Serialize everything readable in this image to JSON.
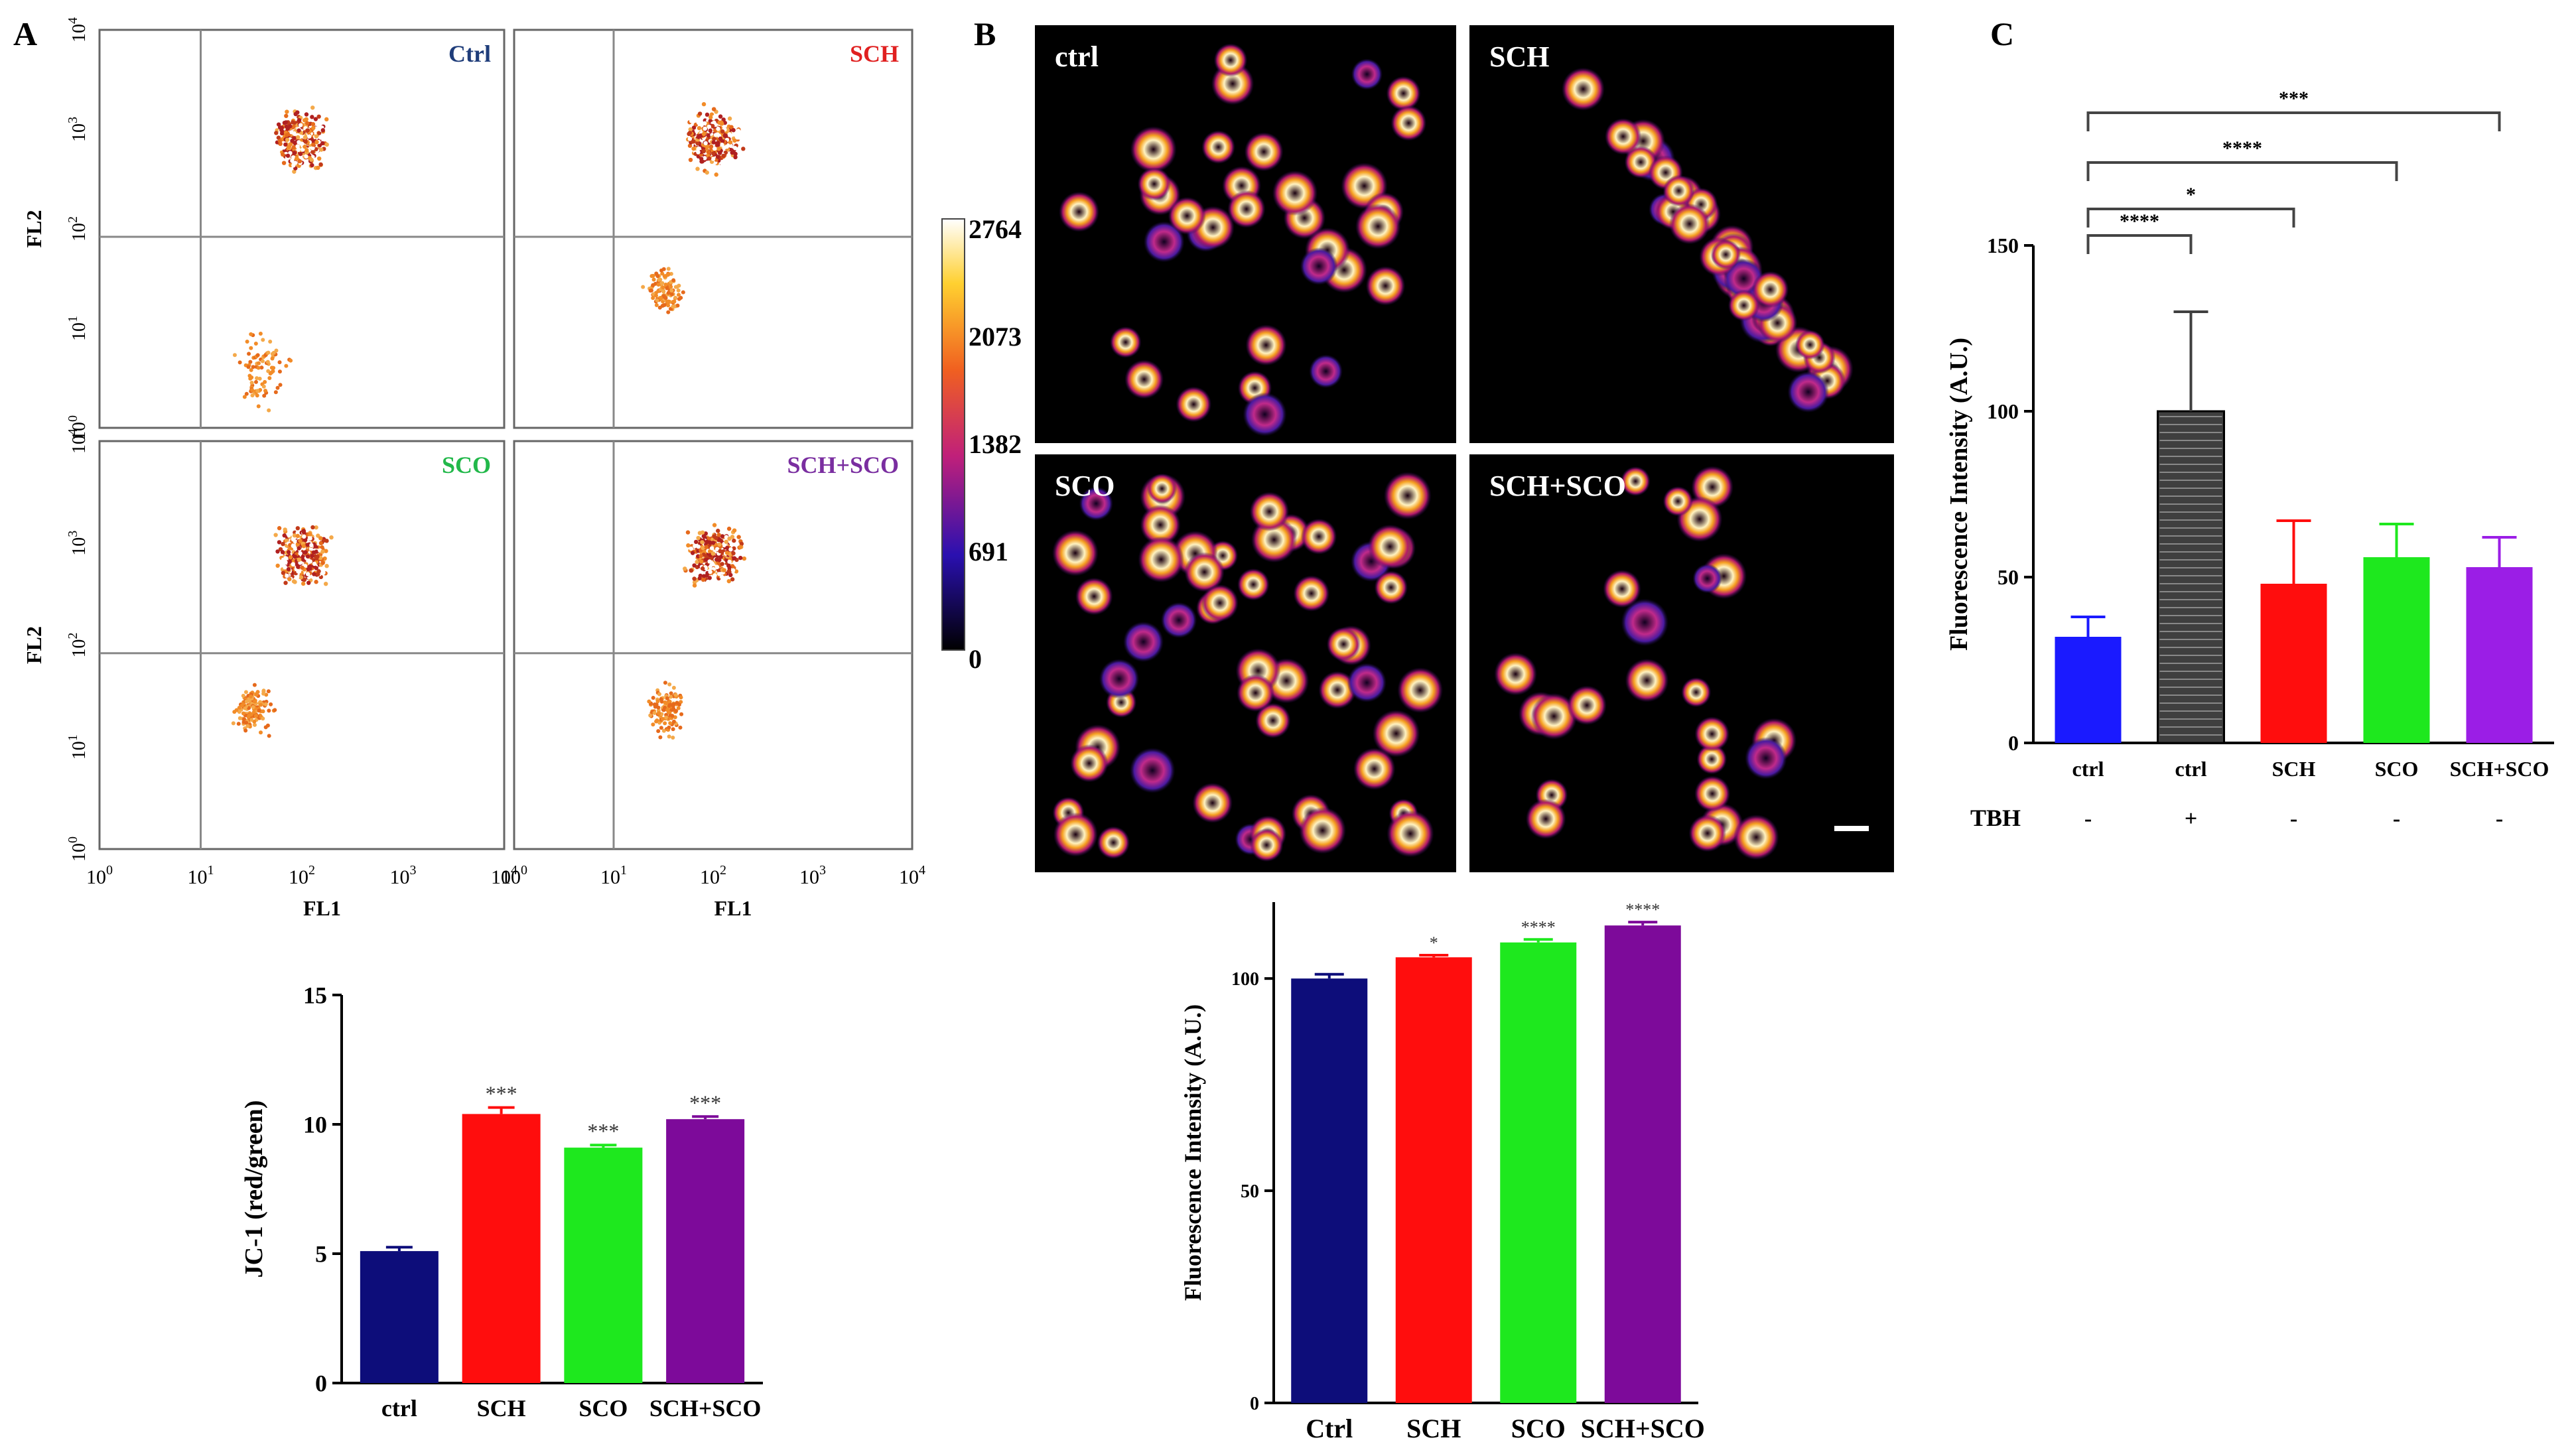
{
  "panel_letters": {
    "a": "A",
    "b": "B",
    "c": "C"
  },
  "colors": {
    "navy": "#0d0d7a",
    "red": "#ff0d0d",
    "green": "#1ee81e",
    "purple": "#7d0a9a",
    "blue": "#1a1aff",
    "dark": "#3f3f3f",
    "violet": "#9b1ee6",
    "ctrl_label": "#1f3d7a",
    "sch_label": "#e02020",
    "sco_label": "#22b84a",
    "schsco_label": "#7a2ea0"
  },
  "flow_cytometry": {
    "xlabel": "FL1",
    "ylabel": "FL2",
    "tick_exponents": [
      "0",
      "1",
      "2",
      "3",
      "4"
    ],
    "tick_base": "10",
    "plots": [
      {
        "label": "Ctrl",
        "color_key": "ctrl_label"
      },
      {
        "label": "SCH",
        "color_key": "sch_label"
      },
      {
        "label": "SCO",
        "color_key": "sco_label"
      },
      {
        "label": "SCH+SCO",
        "color_key": "schsco_label"
      }
    ]
  },
  "micrographs": {
    "panels": [
      "ctrl",
      "SCH",
      "SCO",
      "SCH+SCO"
    ],
    "colorbar_ticks": [
      "2764",
      "2073",
      "1382",
      "691",
      "0"
    ]
  },
  "chart_data": [
    {
      "id": "jc1",
      "type": "bar",
      "categories": [
        "ctrl",
        "SCH",
        "SCO",
        "SCH+SCO"
      ],
      "values": [
        5.1,
        10.4,
        9.1,
        10.2
      ],
      "errors": [
        0.15,
        0.25,
        0.1,
        0.1
      ],
      "significance": [
        "",
        "***",
        "***",
        "***"
      ],
      "colors": [
        "#0d0d7a",
        "#ff0d0d",
        "#1ee81e",
        "#7d0a9a"
      ],
      "title": "",
      "xlabel": "",
      "ylabel": "JC-1 (red/green)",
      "ylim": [
        0,
        15
      ],
      "yticks": [
        "0",
        "5",
        "10",
        "15"
      ]
    },
    {
      "id": "fluor_b",
      "type": "bar",
      "categories": [
        "Ctrl",
        "SCH",
        "SCO",
        "SCH+SCO"
      ],
      "values": [
        100,
        105,
        108.5,
        112.5
      ],
      "errors": [
        1,
        0.5,
        0.7,
        0.8
      ],
      "significance": [
        "",
        "*",
        "****",
        "****"
      ],
      "colors": [
        "#0d0d7a",
        "#ff0d0d",
        "#1ee81e",
        "#7d0a9a"
      ],
      "title": "",
      "xlabel": "",
      "ylabel": "Fluorescence Intensity (A.U.)",
      "ylim": [
        0,
        118
      ],
      "yticks": [
        "0",
        "50",
        "100"
      ]
    },
    {
      "id": "fluor_c",
      "type": "bar",
      "categories": [
        "ctrl",
        "ctrl",
        "SCH",
        "SCO",
        "SCH+SCO"
      ],
      "tbh_label": "TBH",
      "tbh": [
        "-",
        "+",
        "-",
        "-",
        "-"
      ],
      "values": [
        32,
        100,
        48,
        56,
        53
      ],
      "errors": [
        6,
        30,
        19,
        10,
        9
      ],
      "colors": [
        "#1a1aff",
        "#3f3f3f",
        "#ff0d0d",
        "#1ee81e",
        "#9b1ee6"
      ],
      "comparisons": [
        {
          "from": 0,
          "to": 1,
          "label": "****"
        },
        {
          "from": 0,
          "to": 2,
          "label": "*"
        },
        {
          "from": 0,
          "to": 3,
          "label": "****"
        },
        {
          "from": 0,
          "to": 4,
          "label": "***"
        }
      ],
      "title": "",
      "xlabel": "",
      "ylabel": "Fluorescence  Intensity (A.U.)",
      "ylim": [
        0,
        150
      ],
      "yticks": [
        "0",
        "50",
        "100",
        "150"
      ]
    }
  ]
}
